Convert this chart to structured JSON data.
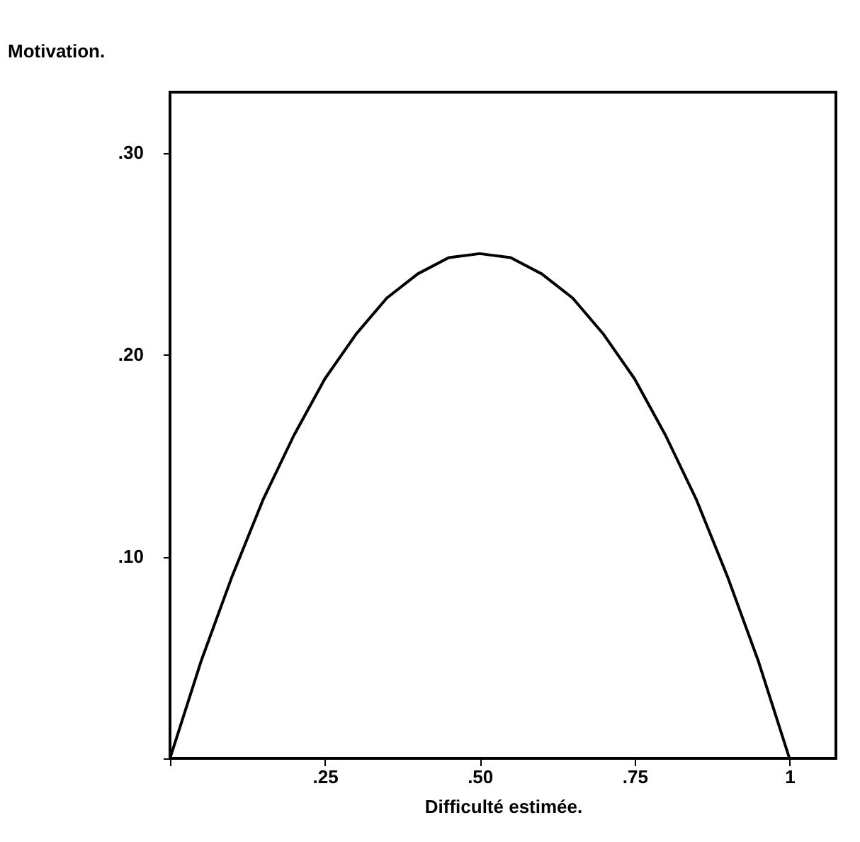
{
  "chart_data": {
    "type": "line",
    "xlabel": "Difficulté estimée.",
    "ylabel": "Motivation.",
    "x": [
      0,
      0.05,
      0.1,
      0.15,
      0.2,
      0.25,
      0.3,
      0.35,
      0.4,
      0.45,
      0.5,
      0.55,
      0.6,
      0.65,
      0.7,
      0.75,
      0.8,
      0.85,
      0.9,
      0.95,
      1
    ],
    "series": [
      {
        "color": "#000000",
        "values": [
          0,
          0.048,
          0.09,
          0.128,
          0.16,
          0.188,
          0.21,
          0.228,
          0.24,
          0.248,
          0.25,
          0.248,
          0.24,
          0.228,
          0.21,
          0.188,
          0.16,
          0.128,
          0.09,
          0.048,
          0
        ]
      }
    ],
    "xlim": [
      0,
      1.075
    ],
    "ylim": [
      0,
      0.33
    ],
    "xticks": [
      {
        "value": 0,
        "label": null
      },
      {
        "value": 0.25,
        "label": ".25"
      },
      {
        "value": 0.5,
        "label": ".50"
      },
      {
        "value": 0.75,
        "label": ".75"
      },
      {
        "value": 1,
        "label": "1"
      }
    ],
    "yticks": [
      {
        "value": 0,
        "label": null
      },
      {
        "value": 0.1,
        "label": ".10"
      },
      {
        "value": 0.2,
        "label": ".20"
      },
      {
        "value": 0.3,
        "label": ".30"
      }
    ],
    "grid": false,
    "marker": "none",
    "line_style": "solid"
  }
}
